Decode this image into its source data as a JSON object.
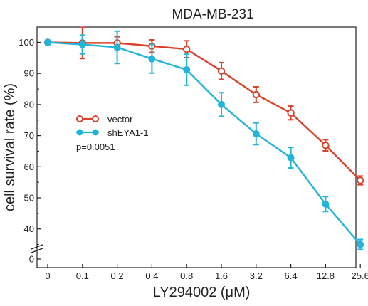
{
  "chart_data": {
    "type": "line",
    "title": "MDA-MB-231",
    "xlabel": "LY294002 (μM)",
    "ylabel": "cell survival rate (%)",
    "categories": [
      "0",
      "0.1",
      "0.2",
      "0.4",
      "0.8",
      "1.6",
      "3.2",
      "6.4",
      "12.8",
      "25.6"
    ],
    "y_ticks": [
      100,
      90,
      80,
      70,
      60,
      50,
      40,
      0
    ],
    "y_break": true,
    "ylim": [
      30,
      105
    ],
    "grid": false,
    "legend_position": "left-middle",
    "series": [
      {
        "name": "vector",
        "color": "#d9432b",
        "marker": "open-circle",
        "values": [
          100,
          99.8,
          99.8,
          98.8,
          97.8,
          90.8,
          83.2,
          77.3,
          66.9,
          55.6
        ],
        "errors": [
          0.7,
          5.0,
          2.0,
          2.0,
          2.7,
          2.7,
          2.5,
          2.2,
          1.8,
          1.4
        ]
      },
      {
        "name": "shEYA1-1",
        "color": "#22b5d9",
        "marker": "filled-circle",
        "values": [
          100,
          99.3,
          98.4,
          94.7,
          91.2,
          80.0,
          70.6,
          62.9,
          48.0,
          35.0
        ],
        "errors": [
          0.7,
          3.0,
          5.2,
          4.6,
          5.0,
          3.8,
          3.5,
          3.3,
          2.4,
          1.6
        ]
      }
    ],
    "annotation": "p=0.0051"
  }
}
